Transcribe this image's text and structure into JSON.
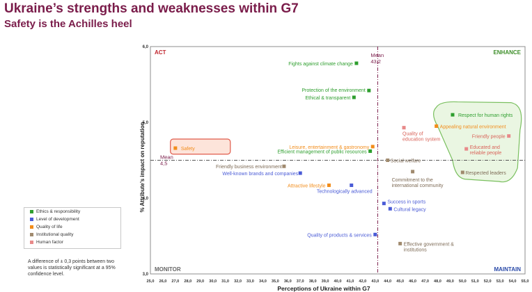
{
  "header": {
    "title": "Ukraine’s strengths and weaknesses within G7",
    "subtitle": "Safety is the Achilles heel"
  },
  "chart_data": {
    "type": "scatter",
    "xlabel": "Perceptions of Ukraine within G7",
    "ylabel": "% Attribute’s impact on reputation",
    "xlim": [
      25.0,
      55.0
    ],
    "ylim": [
      3.0,
      6.0
    ],
    "x_tick_labels": [
      "25,0",
      "26,0",
      "27,0",
      "28,0",
      "29,0",
      "30,0",
      "31,0",
      "32,0",
      "33,0",
      "34,0",
      "35,0",
      "36,0",
      "37,0",
      "38,0",
      "39,0",
      "40,0",
      "41,0",
      "42,0",
      "43,0",
      "44,0",
      "45,0",
      "46,0",
      "47,0",
      "48,0",
      "49,0",
      "50,0",
      "51,0",
      "52,0",
      "53,0",
      "54,0",
      "55,0"
    ],
    "y_ticks": [
      {
        "value": 6.0,
        "label": "6,0"
      },
      {
        "value": 5.0,
        "label": "5,0"
      },
      {
        "value": 4.0,
        "label": "4,0"
      },
      {
        "value": 3.0,
        "label": "3,0"
      }
    ],
    "mean_x": 43.2,
    "mean_y": 4.5,
    "mean_x_label": "Mean\n43,2",
    "mean_y_label": "Mean\n4,5",
    "quadrants": {
      "top_left": "ACT",
      "top_right": "ENHANCE",
      "bottom_left": "MONITOR",
      "bottom_right": "MAINTAIN"
    },
    "categories": [
      {
        "name": "Ethics & responsibility",
        "color": "#2e9e2e"
      },
      {
        "name": "Level of development",
        "color": "#4a5bd6"
      },
      {
        "name": "Quality of life",
        "color": "#f28c1a"
      },
      {
        "name": "Institutional quality",
        "color": "#a08a6e"
      },
      {
        "name": "Human factor",
        "color": "#e88a8a"
      }
    ],
    "points": [
      {
        "label": "Fights against climate change",
        "cat": 0,
        "x": 41.5,
        "y": 5.78,
        "anchor": "end",
        "dx": -5,
        "dy": 3
      },
      {
        "label": "Protection of the environment",
        "cat": 0,
        "x": 42.5,
        "y": 5.42,
        "anchor": "end",
        "dx": -5,
        "dy": 2
      },
      {
        "label": "Ethical & transparent",
        "cat": 0,
        "x": 41.3,
        "y": 5.33,
        "anchor": "end",
        "dx": -5,
        "dy": 3
      },
      {
        "label": "Respect for human rights",
        "cat": 0,
        "x": 49.2,
        "y": 5.1,
        "anchor": "start",
        "dx": 8,
        "dy": 3
      },
      {
        "label": "Efficient management of public resources",
        "cat": 0,
        "x": 42.6,
        "y": 4.62,
        "anchor": "end",
        "dx": -5,
        "dy": 3
      },
      {
        "label": "Technologically advanced",
        "cat": 1,
        "x": 41.1,
        "y": 4.17,
        "anchor": "middle",
        "dx": -10,
        "dy": 11
      },
      {
        "label": "Well-known brands and companies",
        "cat": 1,
        "x": 37.0,
        "y": 4.33,
        "anchor": "end",
        "dx": -3,
        "dy": 3
      },
      {
        "label": "Success in sports",
        "cat": 1,
        "x": 43.7,
        "y": 3.93,
        "anchor": "start",
        "dx": 5,
        "dy": 0
      },
      {
        "label": "Cultural legacy",
        "cat": 1,
        "x": 44.2,
        "y": 3.86,
        "anchor": "start",
        "dx": 5,
        "dy": 3
      },
      {
        "label": "Quality of products & services",
        "cat": 1,
        "x": 43.0,
        "y": 3.52,
        "anchor": "end",
        "dx": -5,
        "dy": 3
      },
      {
        "label": "Safety",
        "cat": 2,
        "x": 27.0,
        "y": 4.66,
        "anchor": "start",
        "dx": 8,
        "dy": 3
      },
      {
        "label": "Leisure, entertainment & gastronomy",
        "cat": 2,
        "x": 42.8,
        "y": 4.68,
        "anchor": "end",
        "dx": -5,
        "dy": 3
      },
      {
        "label": "Attractive lifestyle",
        "cat": 2,
        "x": 39.3,
        "y": 4.17,
        "anchor": "end",
        "dx": -5,
        "dy": 3
      },
      {
        "label": "Appealing natural environment",
        "cat": 2,
        "x": 47.9,
        "y": 4.95,
        "anchor": "start",
        "dx": 5,
        "dy": 3
      },
      {
        "label": "Friendly business environment",
        "cat": 3,
        "x": 35.7,
        "y": 4.42,
        "anchor": "end",
        "dx": -3,
        "dy": 3
      },
      {
        "label": "Social welfare",
        "cat": 3,
        "x": 44.0,
        "y": 4.5,
        "anchor": "start",
        "dx": 4,
        "dy": 3
      },
      {
        "label": "Commitment to the\ninternational community",
        "cat": 3,
        "x": 46.0,
        "y": 4.35,
        "anchor": "start",
        "dx": -30,
        "dy": 14
      },
      {
        "label": "Respected leaders",
        "cat": 3,
        "x": 50.0,
        "y": 4.34,
        "anchor": "start",
        "dx": 4,
        "dy": 3
      },
      {
        "label": "Effective government &\ninstitutions",
        "cat": 3,
        "x": 45.0,
        "y": 3.4,
        "anchor": "start",
        "dx": 5,
        "dy": 3
      },
      {
        "label": "Quality of\neducation system",
        "cat": 4,
        "x": 45.3,
        "y": 4.93,
        "anchor": "start",
        "dx": -2,
        "dy": 11
      },
      {
        "label": "Friendly people",
        "cat": 4,
        "x": 53.7,
        "y": 4.82,
        "anchor": "end",
        "dx": -5,
        "dy": 3
      },
      {
        "label": "Educated and\nreliable people",
        "cat": 4,
        "x": 50.3,
        "y": 4.65,
        "anchor": "start",
        "dx": 5,
        "dy": 0
      }
    ]
  },
  "legend_title_note": "A difference of ± 0,3 points between two values is statistically significant at a 95% confidence level."
}
